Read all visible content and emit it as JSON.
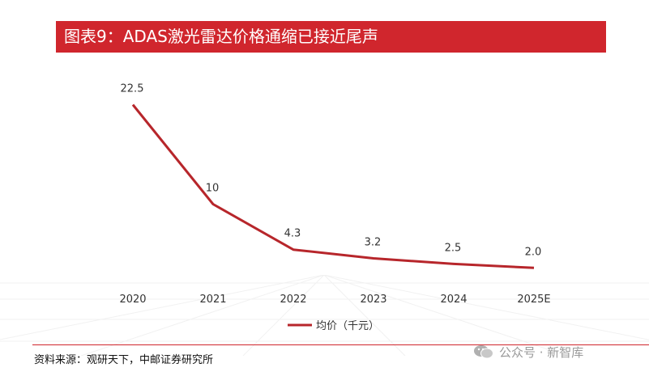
{
  "title": "图表9：ADAS激光雷达价格通缩已接近尾声",
  "chart_data": {
    "type": "line",
    "categories": [
      "2020",
      "2021",
      "2022",
      "2023",
      "2024",
      "2025E"
    ],
    "series": [
      {
        "name": "均价（千元）",
        "values": [
          22.5,
          10,
          4.3,
          3.2,
          2.5,
          2.0
        ],
        "labels": [
          "22.5",
          "10",
          "4.3",
          "3.2",
          "2.5",
          "2.0"
        ]
      }
    ],
    "ylim": [
      0,
      26
    ],
    "legend_position": "bottom",
    "grid": false
  },
  "source": "资料来源：观研天下，中邮证券研究所",
  "watermark": "公众号 · 新智库",
  "colors": {
    "accent": "#d0262d",
    "line": "#b7262b"
  }
}
